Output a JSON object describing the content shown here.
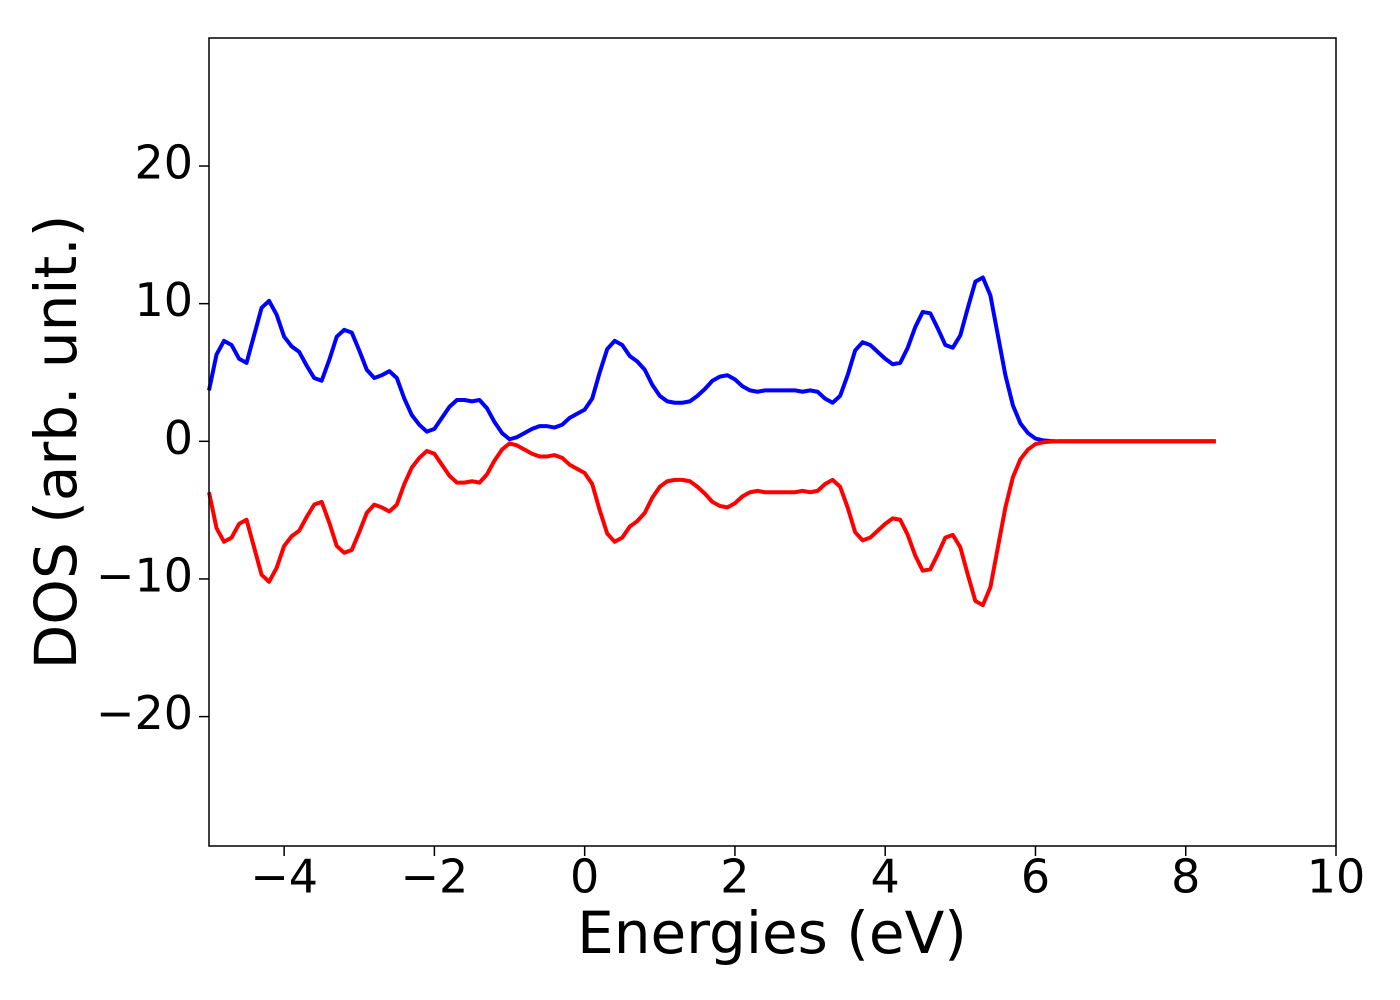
{
  "chart_data": {
    "type": "line",
    "x_label": "Energies (eV)",
    "y_label": "DOS (arb. unit.)",
    "x": [
      -5.0,
      -4.9,
      -4.8,
      -4.7,
      -4.6,
      -4.5,
      -4.4,
      -4.3,
      -4.2,
      -4.1,
      -4.0,
      -3.9,
      -3.8,
      -3.7,
      -3.6,
      -3.5,
      -3.4,
      -3.3,
      -3.2,
      -3.1,
      -3.0,
      -2.9,
      -2.8,
      -2.7,
      -2.6,
      -2.5,
      -2.4,
      -2.3,
      -2.2,
      -2.1,
      -2.0,
      -1.9,
      -1.8,
      -1.7,
      -1.6,
      -1.5,
      -1.4,
      -1.3,
      -1.2,
      -1.1,
      -1.0,
      -0.9,
      -0.8,
      -0.7,
      -0.6,
      -0.5,
      -0.4,
      -0.3,
      -0.2,
      -0.1,
      0.0,
      0.1,
      0.2,
      0.3,
      0.4,
      0.5,
      0.6,
      0.7,
      0.8,
      0.9,
      1.0,
      1.1,
      1.2,
      1.3,
      1.4,
      1.5,
      1.6,
      1.7,
      1.8,
      1.9,
      2.0,
      2.1,
      2.2,
      2.3,
      2.4,
      2.5,
      2.6,
      2.7,
      2.8,
      2.9,
      3.0,
      3.1,
      3.2,
      3.3,
      3.4,
      3.5,
      3.6,
      3.7,
      3.8,
      3.9,
      4.0,
      4.1,
      4.2,
      4.3,
      4.4,
      4.5,
      4.6,
      4.7,
      4.8,
      4.9,
      5.0,
      5.1,
      5.2,
      5.3,
      5.4,
      5.5,
      5.6,
      5.7,
      5.8,
      5.9,
      6.0,
      6.1,
      6.2,
      6.3,
      6.4,
      6.5,
      6.6,
      6.7,
      6.8,
      6.9,
      7.0,
      7.1,
      7.2,
      7.3,
      7.4,
      7.5,
      7.6,
      7.7,
      7.8,
      7.9,
      8.0,
      8.1,
      8.2,
      8.3,
      8.4
    ],
    "series": [
      {
        "color": "#0000ff",
        "values": [
          3.7,
          6.3,
          7.3,
          7.0,
          6.0,
          5.7,
          7.7,
          9.7,
          10.2,
          9.2,
          7.6,
          6.9,
          6.5,
          5.5,
          4.6,
          4.4,
          5.9,
          7.6,
          8.1,
          7.9,
          6.6,
          5.2,
          4.6,
          4.8,
          5.1,
          4.6,
          3.1,
          1.9,
          1.2,
          0.7,
          0.9,
          1.7,
          2.5,
          3.0,
          3.0,
          2.9,
          3.0,
          2.4,
          1.4,
          0.6,
          0.15,
          0.3,
          0.6,
          0.9,
          1.1,
          1.1,
          1.0,
          1.2,
          1.7,
          2.0,
          2.3,
          3.1,
          5.0,
          6.7,
          7.3,
          7.0,
          6.2,
          5.8,
          5.2,
          4.1,
          3.3,
          2.9,
          2.8,
          2.8,
          2.9,
          3.3,
          3.8,
          4.4,
          4.7,
          4.8,
          4.5,
          4.0,
          3.7,
          3.6,
          3.7,
          3.7,
          3.7,
          3.7,
          3.7,
          3.6,
          3.7,
          3.6,
          3.1,
          2.8,
          3.3,
          4.8,
          6.6,
          7.2,
          7.0,
          6.5,
          6.0,
          5.6,
          5.7,
          6.8,
          8.3,
          9.4,
          9.3,
          8.2,
          7.0,
          6.8,
          7.7,
          9.7,
          11.6,
          11.9,
          10.6,
          7.7,
          4.8,
          2.6,
          1.3,
          0.6,
          0.2,
          0.07,
          0.02,
          0,
          0,
          0,
          0,
          0,
          0,
          0,
          0,
          0,
          0,
          0,
          0,
          0,
          0,
          0,
          0,
          0,
          0,
          0,
          0,
          0,
          0
        ]
      },
      {
        "color": "#ff0000",
        "values": [
          -3.7,
          -6.3,
          -7.3,
          -7.0,
          -6.0,
          -5.7,
          -7.7,
          -9.7,
          -10.2,
          -9.2,
          -7.6,
          -6.9,
          -6.5,
          -5.5,
          -4.6,
          -4.4,
          -5.9,
          -7.6,
          -8.1,
          -7.9,
          -6.6,
          -5.2,
          -4.6,
          -4.8,
          -5.1,
          -4.6,
          -3.1,
          -1.9,
          -1.2,
          -0.7,
          -0.9,
          -1.7,
          -2.5,
          -3.0,
          -3.0,
          -2.9,
          -3.0,
          -2.4,
          -1.4,
          -0.6,
          -0.15,
          -0.3,
          -0.6,
          -0.9,
          -1.1,
          -1.1,
          -1.0,
          -1.2,
          -1.7,
          -2.0,
          -2.3,
          -3.1,
          -5.0,
          -6.7,
          -7.3,
          -7.0,
          -6.2,
          -5.8,
          -5.2,
          -4.1,
          -3.3,
          -2.9,
          -2.8,
          -2.8,
          -2.9,
          -3.3,
          -3.8,
          -4.4,
          -4.7,
          -4.8,
          -4.5,
          -4.0,
          -3.7,
          -3.6,
          -3.7,
          -3.7,
          -3.7,
          -3.7,
          -3.7,
          -3.6,
          -3.7,
          -3.6,
          -3.1,
          -2.8,
          -3.3,
          -4.8,
          -6.6,
          -7.2,
          -7.0,
          -6.5,
          -6.0,
          -5.6,
          -5.7,
          -6.8,
          -8.3,
          -9.4,
          -9.3,
          -8.2,
          -7.0,
          -6.8,
          -7.7,
          -9.7,
          -11.6,
          -11.9,
          -10.6,
          -7.7,
          -4.8,
          -2.6,
          -1.3,
          -0.6,
          -0.2,
          -0.07,
          -0.02,
          0,
          0,
          0,
          0,
          0,
          0,
          0,
          0,
          0,
          0,
          0,
          0,
          0,
          0,
          0,
          0,
          0,
          0,
          0,
          0,
          0,
          0
        ]
      }
    ],
    "xlim": [
      -5,
      10
    ],
    "xticks": [
      {
        "value": -4,
        "label": "−4"
      },
      {
        "value": -2,
        "label": "−2"
      },
      0,
      2,
      4,
      6,
      8,
      10
    ],
    "ylim": [
      -29.4,
      29.3
    ],
    "yticks": [
      {
        "value": -20,
        "label": "−20"
      },
      {
        "value": -10,
        "label": "−10"
      },
      0,
      10,
      20
    ],
    "grid": false
  }
}
